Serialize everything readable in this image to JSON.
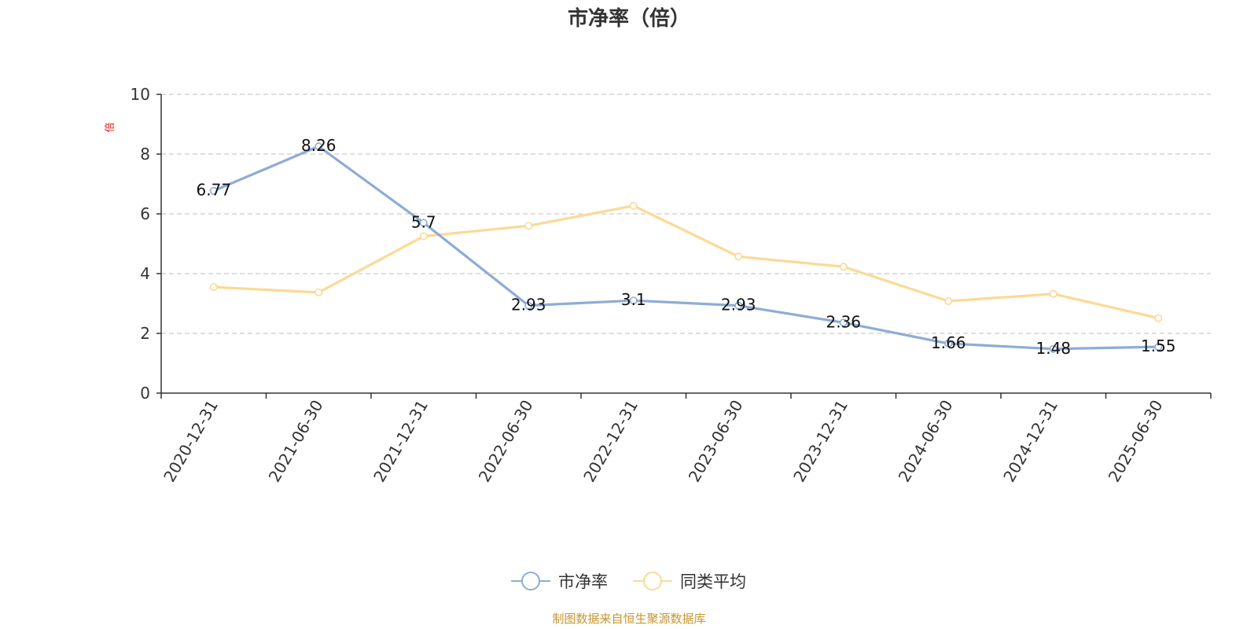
{
  "chart_data": {
    "type": "line",
    "title": "市净率（倍）",
    "ylabel": "倍",
    "ylim": [
      0,
      10
    ],
    "yticks": [
      "0",
      "2",
      "4",
      "6",
      "8",
      "10"
    ],
    "grid": true,
    "legend_position": "bottom",
    "categories": [
      "2020-12-31",
      "2021-06-30",
      "2021-12-31",
      "2022-06-30",
      "2022-12-31",
      "2023-06-30",
      "2023-12-31",
      "2024-06-30",
      "2024-12-31",
      "2025-06-30"
    ],
    "series": [
      {
        "name": "市净率",
        "color": "#8eacd5",
        "values": [
          6.77,
          8.26,
          5.7,
          2.93,
          3.1,
          2.93,
          2.36,
          1.66,
          1.48,
          1.55
        ],
        "labels": [
          "6.77",
          "8.26",
          "5.7",
          "2.93",
          "3.1",
          "2.93",
          "2.36",
          "1.66",
          "1.48",
          "1.55"
        ]
      },
      {
        "name": "同类平均",
        "color": "#fcd995",
        "values": [
          3.55,
          3.37,
          5.25,
          5.6,
          6.27,
          4.57,
          4.23,
          3.08,
          3.32,
          2.51
        ]
      }
    ],
    "source": "制图数据来自恒生聚源数据库",
    "source_color": "#c8952e",
    "unit_color": "#e02020",
    "axis_color": "#333333",
    "grid_color": "#cccccc"
  }
}
